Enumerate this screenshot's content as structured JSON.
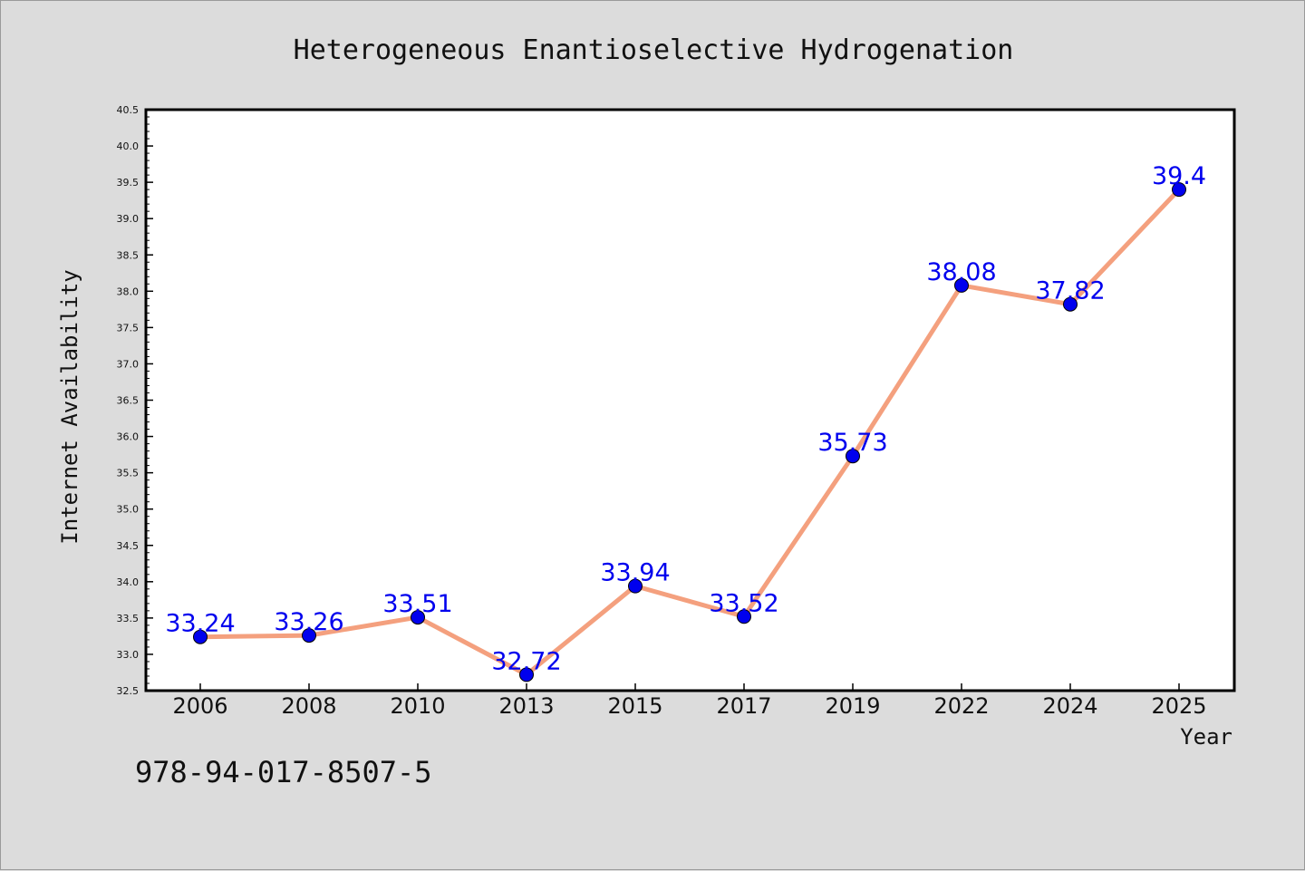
{
  "chart_data": {
    "type": "line",
    "title": "Heterogeneous Enantioselective Hydrogenation",
    "xlabel": "Year",
    "ylabel": "Internet Availability",
    "categories": [
      "2006",
      "2008",
      "2010",
      "2013",
      "2015",
      "2017",
      "2019",
      "2022",
      "2024",
      "2025"
    ],
    "series": [
      {
        "values": [
          33.24,
          33.26,
          33.51,
          32.72,
          33.94,
          33.52,
          35.73,
          38.08,
          37.82,
          39.4
        ],
        "labels": [
          "33.24",
          "33.26",
          "33.51",
          "32.72",
          "33.94",
          "33.52",
          "35.73",
          "38.08",
          "37.82",
          "39.4"
        ],
        "line_color": "#f4a07e",
        "marker_color": "#0000ee",
        "label_color": "#0000ee"
      }
    ],
    "ylim": [
      32.5,
      40.5
    ],
    "yticks": [
      "32.5",
      "33.0",
      "33.5",
      "34.0",
      "34.5",
      "35.0",
      "35.5",
      "36.0",
      "36.5",
      "37.0",
      "37.5",
      "38.0",
      "38.5",
      "39.0",
      "39.5",
      "40.0",
      "40.5"
    ],
    "grid": false,
    "legend": "none"
  },
  "footer": {
    "code": "978-94-017-8507-5"
  },
  "colors": {
    "background": "#dcdcdc",
    "plot_area": "#ffffff"
  }
}
